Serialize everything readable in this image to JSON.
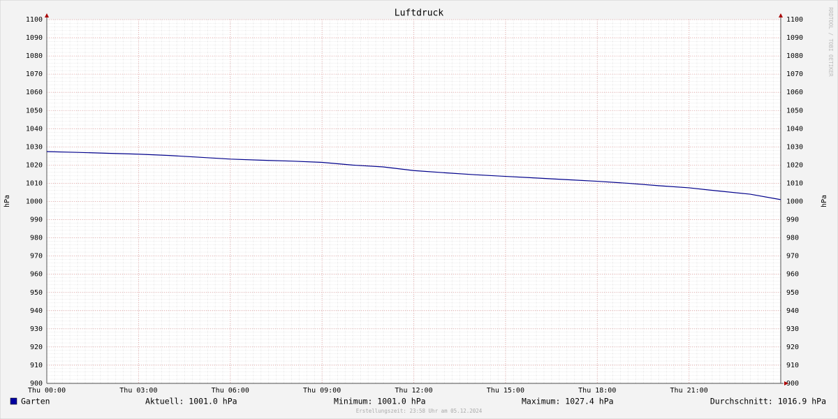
{
  "chart_data": {
    "type": "line",
    "title": "Luftdruck",
    "ylabel": "hPa",
    "y2label": "hPa",
    "x": [
      0,
      1,
      2,
      3,
      4,
      5,
      6,
      7,
      8,
      9,
      10,
      11,
      12,
      13,
      14,
      15,
      16,
      17,
      18,
      19,
      20,
      21,
      22,
      23,
      24
    ],
    "series": [
      {
        "name": "Garten",
        "color": "#00008b",
        "values": [
          1027.4,
          1027,
          1026.5,
          1026,
          1025.3,
          1024.3,
          1023.3,
          1022.7,
          1022.2,
          1021.5,
          1020,
          1019,
          1017,
          1015.8,
          1014.7,
          1013.8,
          1012.9,
          1012,
          1011.1,
          1010,
          1008.7,
          1007.5,
          1005.7,
          1004,
          1001.0
        ]
      }
    ],
    "legend_color": "#0000a0",
    "xlim": [
      0,
      24
    ],
    "xticks": [
      {
        "value": 0,
        "label": "Thu 00:00"
      },
      {
        "value": 3,
        "label": "Thu 03:00"
      },
      {
        "value": 6,
        "label": "Thu 06:00"
      },
      {
        "value": 9,
        "label": "Thu 09:00"
      },
      {
        "value": 12,
        "label": "Thu 12:00"
      },
      {
        "value": 15,
        "label": "Thu 15:00"
      },
      {
        "value": 18,
        "label": "Thu 18:00"
      },
      {
        "value": 21,
        "label": "Thu 21:00"
      }
    ],
    "ylim": [
      900,
      1100
    ],
    "yticks": [
      900,
      910,
      920,
      930,
      940,
      950,
      960,
      970,
      980,
      990,
      1000,
      1010,
      1020,
      1030,
      1040,
      1050,
      1060,
      1070,
      1080,
      1090,
      1100
    ],
    "grid": true,
    "stats": [
      "Aktuell: 1001.0 hPa",
      "Minimum: 1001.0 hPa",
      "Maximum: 1027.4 hPa",
      "Durchschnitt: 1016.9 hPa"
    ],
    "footer": "Erstellungszeit: 23:58 Uhr am 05.12.2024",
    "watermark": "RRDTOOL / TOBI OETIKER"
  }
}
